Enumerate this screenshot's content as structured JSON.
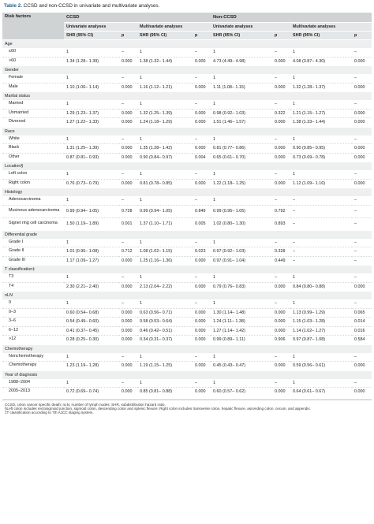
{
  "caption": {
    "label": "Table 2.",
    "text": "CCSD and non-CCSD in univariate and multivariate analyses."
  },
  "header": {
    "risk_factors": "Risk factors",
    "groups": [
      "CCSD",
      "Non-CCSD"
    ],
    "analyses": [
      "Univariate analyses",
      "Multivariate analyses",
      "Univariate analyses",
      "Multivariate analyses"
    ],
    "shr": "SHR (95% CI)",
    "p": "p"
  },
  "sections": [
    {
      "title": "Age",
      "rows": [
        {
          "label": "≤60",
          "v": [
            "1",
            "–",
            "1",
            "–",
            "1",
            "–",
            "1",
            "–"
          ]
        },
        {
          "label": ">60",
          "v": [
            "1.34 (1.28– 1.39)",
            "0.000",
            "1.38 (1.32– 1.44)",
            "0.000",
            "4.73 (4.49– 4.98)",
            "0.000",
            "4.08 (3.87– 4.30)",
            "0.000"
          ]
        }
      ]
    },
    {
      "title": "Gender",
      "rows": [
        {
          "label": "Female",
          "v": [
            "1",
            "–",
            "1",
            "–",
            "1",
            "–",
            "1",
            "–"
          ]
        },
        {
          "label": "Male",
          "v": [
            "1.10 (1.06– 1.14)",
            "0.000",
            "1.16 (1.12– 1.21)",
            "0.000",
            "1.11 (1.08– 1.15)",
            "0.000",
            "1.32 (1.28– 1.37)",
            "0.000"
          ]
        }
      ]
    },
    {
      "title": "Marital status",
      "rows": [
        {
          "label": "Married",
          "v": [
            "1",
            "–",
            "1",
            "–",
            "1",
            "–",
            "1",
            "–"
          ]
        },
        {
          "label": "Unmarried",
          "v": [
            "1.29 (1.23– 1.37)",
            "0.000",
            "1.32 (1.25– 1.39)",
            "0.000",
            "0.98 (0.92– 1.03)",
            "0.322",
            "1.21 (1.15– 1.27)",
            "0.000"
          ]
        },
        {
          "label": "Divorced",
          "v": [
            "1.27 (1.22– 1.33)",
            "0.000",
            "1.24 (1.18– 1.29)",
            "0.000",
            "1.51 (1.46– 1.57)",
            "0.000",
            "1.38 (1.33– 1.44)",
            "0.000"
          ]
        }
      ]
    },
    {
      "title": "Race",
      "rows": [
        {
          "label": "White",
          "v": [
            "1",
            "–",
            "1",
            "–",
            "1",
            "–",
            "1",
            "–"
          ]
        },
        {
          "label": "Black",
          "v": [
            "1.31 (1.25– 1.39)",
            "0.000",
            "1.35 (1.28– 1.42)",
            "0.000",
            "0.81 (0.77– 0.86)",
            "0.000",
            "0.90 (0.85– 0.95)",
            "0.000"
          ]
        },
        {
          "label": "Other",
          "v": [
            "0.87 (0.81– 0.93)",
            "0.000",
            "0.90 (0.84– 0.97)",
            "0.004",
            "0.65 (0.61– 0.70)",
            "0.000",
            "0.73 (0.69– 0.78)",
            "0.000"
          ]
        }
      ]
    },
    {
      "title": "Location§",
      "rows": [
        {
          "label": "Left colon",
          "v": [
            "1",
            "–",
            "1",
            "–",
            "1",
            "–",
            "1",
            "–"
          ]
        },
        {
          "label": "Right colon",
          "v": [
            "0.76 (0.73– 0.79)",
            "0.000",
            "0.81 (0.78– 0.85)",
            "0.000",
            "1.22 (1.18– 1.25)",
            "0.000",
            "1.12 (1.09– 1.16)",
            "0.000"
          ]
        }
      ]
    },
    {
      "title": "Histology",
      "rows": [
        {
          "label": "Adenocarcinoma",
          "v": [
            "1",
            "–",
            "1",
            "–",
            "1",
            "–",
            "–",
            "–"
          ]
        },
        {
          "label": "Mucinous adenocarcinoma",
          "tall": true,
          "v": [
            "0.99 (0.94– 1.05)",
            "0.728",
            "0.99 (0.94– 1.05)",
            "0.849",
            "0.99 (0.95– 1.05)",
            "0.792",
            "–",
            "–"
          ]
        },
        {
          "label": "Signet ring cell carcinoma",
          "tall": true,
          "v": [
            "1.50 (1.19– 1.89)",
            "0.001",
            "1.37 (1.10– 1.71)",
            "0.005",
            "1.02 (0.80– 1.30)",
            "0.893",
            "–",
            "–"
          ]
        }
      ]
    },
    {
      "title": "Differential grade",
      "rows": [
        {
          "label": "Grade I",
          "v": [
            "1",
            "–",
            "1",
            "–",
            "1",
            "–",
            "–",
            "–"
          ]
        },
        {
          "label": "Grade II",
          "v": [
            "1.01 (0.95– 1.08)",
            "0.712",
            "1.08 (1.02– 1.15)",
            "0.023",
            "0.97 (0.92– 1.03)",
            "0.328",
            "–",
            "–"
          ]
        },
        {
          "label": "Grade III",
          "v": [
            "1.17 (1.09– 1.27)",
            "0.000",
            "1.25 (1.16– 1.36)",
            "0.000",
            "0.97 (0.91– 1.04)",
            "0.449",
            "–",
            "–"
          ]
        }
      ]
    },
    {
      "title": "T classification‡",
      "rows": [
        {
          "label": "T3",
          "v": [
            "1",
            "–",
            "1",
            "–",
            "1",
            "–",
            "1",
            "–"
          ]
        },
        {
          "label": "T4",
          "v": [
            "2.30 (2.21– 2.40)",
            "0.000",
            "2.13 (2.04– 2.22)",
            "0.000",
            "0.79 (0.76– 0.83)",
            "0.000",
            "0.84 (0.80– 0.88)",
            "0.000"
          ]
        }
      ]
    },
    {
      "title": "nLN",
      "rows": [
        {
          "label": "0",
          "v": [
            "1",
            "–",
            "1",
            "–",
            "1",
            "–",
            "1",
            "–"
          ]
        },
        {
          "label": "0–3",
          "v": [
            "0.60 (0.54– 0.68)",
            "0.000",
            "0.63 (0.56– 0.71)",
            "0.000",
            "1.30 (1.14– 1.48)",
            "0.000",
            "1.13 (0.99– 1.29)",
            "0.065"
          ]
        },
        {
          "label": "3–6",
          "v": [
            "0.54 (0.49– 0.60)",
            "0.000",
            "0.58 (0.53– 0.64)",
            "0.000",
            "1.24 (1.11– 1.38)",
            "0.000",
            "1.15 (1.03– 1.28)",
            "0.014"
          ]
        },
        {
          "label": "6–12",
          "v": [
            "0.41 (0.37– 0.45)",
            "0.000",
            "0.46 (0.42– 0.51)",
            "0.000",
            "1.27 (1.14– 1.42)",
            "0.000",
            "1.14 (1.02– 1.27)",
            "0.016"
          ]
        },
        {
          "label": ">12",
          "v": [
            "0.28 (0.25– 0.30)",
            "0.000",
            "0.34 (0.31– 0.37)",
            "0.000",
            "0.99 (0.89– 1.11)",
            "0.906",
            "0.97 (0.87– 1.08)",
            "0.584"
          ]
        }
      ]
    },
    {
      "title": "Chemotherapy",
      "rows": [
        {
          "label": "Nonchemotherapy",
          "v": [
            "1",
            "–",
            "1",
            "–",
            "1",
            "–",
            "1",
            "–"
          ]
        },
        {
          "label": "Chemotherapy",
          "v": [
            "1.23 (1.19– 1.28)",
            "0.000",
            "1.19 (1.15– 1.25)",
            "0.000",
            "0.45 (0.43– 0.47)",
            "0.000",
            "0.59 (0.56– 0.61)",
            "0.000"
          ]
        }
      ]
    },
    {
      "title": "Year of diagnosis",
      "rows": [
        {
          "label": "1988–2004",
          "v": [
            "1",
            "–",
            "1",
            "–",
            "1",
            "–",
            "1",
            "–"
          ]
        },
        {
          "label": "2005–2013",
          "v": [
            "0.72 (0.69– 0.74)",
            "0.000",
            "0.85 (0.81– 0.88)",
            "0.000",
            "0.60 (0.57– 0.62)",
            "0.000",
            "0.64 (0.61– 0.67)",
            "0.000"
          ]
        }
      ]
    }
  ],
  "footnotes": [
    "CCSD, colon cancer specific death; nLN, number of lymph nodes; SHR, subdistribution hazard ratio.",
    "§Left colon includes rectosigmoid junction, sigmoid colon, descending colon and splenic flexure; Right colon includes transverse colon, hepatic flexure, ascending colon, cecum, and appendix.",
    "‡T classification according to 7th AJCC staging system."
  ]
}
